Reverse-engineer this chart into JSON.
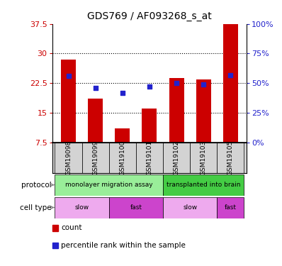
{
  "title": "GDS769 / AF093268_s_at",
  "samples": [
    "GSM19098",
    "GSM19099",
    "GSM19100",
    "GSM19101",
    "GSM19102",
    "GSM19103",
    "GSM19105"
  ],
  "count_values": [
    28.5,
    18.5,
    11.0,
    16.0,
    23.8,
    23.5,
    37.5
  ],
  "percentile_values": [
    56,
    46,
    42,
    47,
    50,
    49,
    57
  ],
  "ylim_left": [
    7.5,
    37.5
  ],
  "ylim_right": [
    0,
    100
  ],
  "yticks_left": [
    7.5,
    15.0,
    22.5,
    30.0,
    37.5
  ],
  "yticks_right": [
    0,
    25,
    50,
    75,
    100
  ],
  "ytick_labels_left": [
    "7.5",
    "15",
    "22.5",
    "30",
    "37.5"
  ],
  "ytick_labels_right": [
    "0%",
    "25%",
    "50%",
    "75%",
    "100%"
  ],
  "bar_color": "#cc0000",
  "dot_color": "#2222cc",
  "background_color": "#ffffff",
  "protocol_groups": [
    {
      "label": "monolayer migration assay",
      "start": 0,
      "end": 4,
      "color": "#99ee99"
    },
    {
      "label": "transplanted into brain",
      "start": 4,
      "end": 7,
      "color": "#44cc44"
    }
  ],
  "cell_type_groups": [
    {
      "label": "slow",
      "start": 0,
      "end": 2,
      "color": "#eeaaee"
    },
    {
      "label": "fast",
      "start": 2,
      "end": 4,
      "color": "#cc44cc"
    },
    {
      "label": "slow",
      "start": 4,
      "end": 6,
      "color": "#eeaaee"
    },
    {
      "label": "fast",
      "start": 6,
      "end": 7,
      "color": "#cc44cc"
    }
  ],
  "legend_items": [
    {
      "label": "count",
      "color": "#cc0000"
    },
    {
      "label": "percentile rank within the sample",
      "color": "#2222cc"
    }
  ],
  "left_tick_color": "#cc0000",
  "right_tick_color": "#2222cc",
  "tick_label_size": 8,
  "title_fontsize": 10,
  "gsm_fontsize": 6.5,
  "annot_fontsize": 7.5,
  "legend_fontsize": 7.5
}
